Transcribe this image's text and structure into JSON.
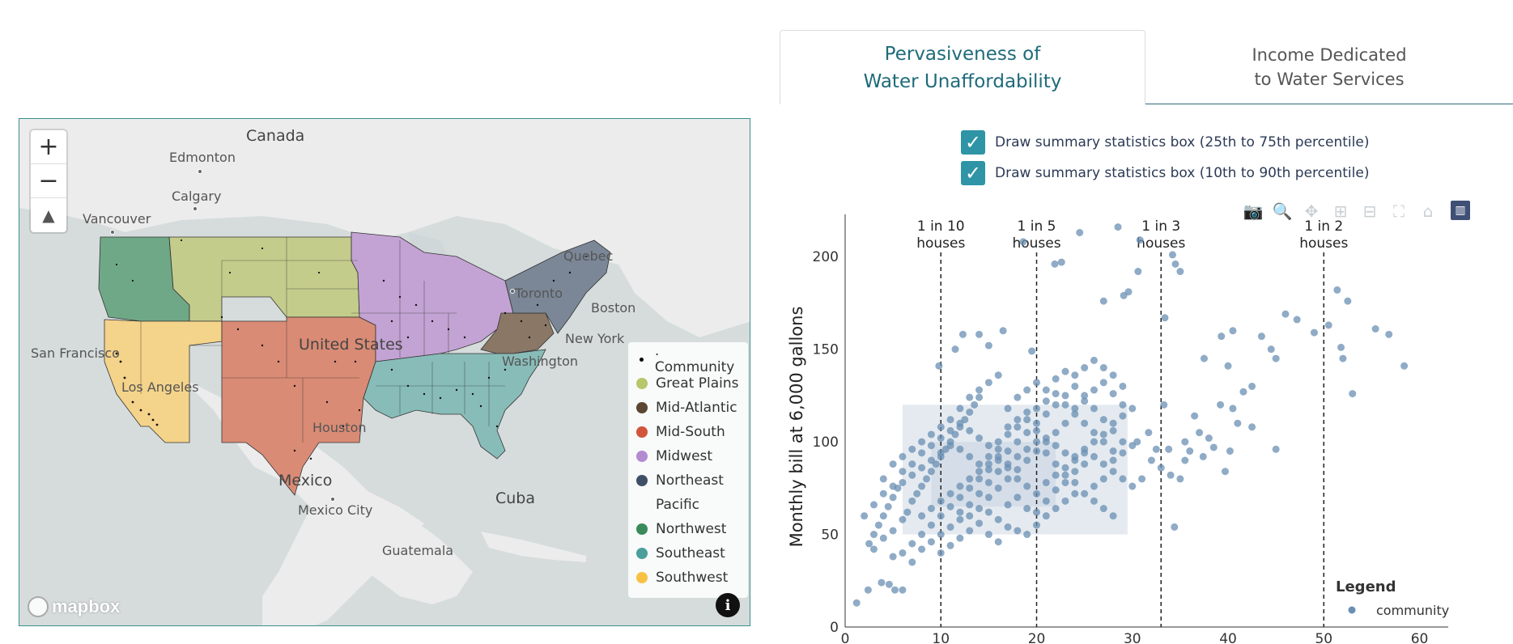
{
  "tabs": {
    "active_line1": "Pervasiveness of",
    "active_line2": "Water Unaffordability",
    "inactive_line1": "Income Dedicated",
    "inactive_line2": "to Water Services"
  },
  "checkboxes": [
    {
      "label": "Draw summary statistics box (25th to 75th percentile)",
      "checked": true
    },
    {
      "label": "Draw summary statistics box (10th to 90th percentile)",
      "checked": true
    }
  ],
  "map": {
    "controls": {
      "zoom_in": "+",
      "zoom_out": "−",
      "compass": "▲"
    },
    "labels": {
      "canada": "Canada",
      "edmonton": "Edmonton",
      "calgary": "Calgary",
      "vancouver": "Vancouver",
      "quebec": "Quebec",
      "toronto": "Toronto",
      "boston": "Boston",
      "new_york": "New York",
      "washington": "Washington",
      "united_states": "United States",
      "san_francisco": "San Francisco",
      "los_angeles": "Los Angeles",
      "houston": "Houston",
      "mexico": "Mexico",
      "mexico_city": "Mexico City",
      "cuba": "Cuba",
      "guatemala": "Guatemala"
    },
    "logo": "mapbox",
    "info": "i",
    "legend": [
      {
        "label": ". Community",
        "color": "#000000",
        "kind": "dot"
      },
      {
        "label": "Great Plains",
        "color": "#b7c76b"
      },
      {
        "label": "Mid-Atlantic",
        "color": "#5a4632"
      },
      {
        "label": "Mid-South",
        "color": "#d0553c"
      },
      {
        "label": "Midwest",
        "color": "#b38bcf"
      },
      {
        "label": "Northeast",
        "color": "#3f5066"
      },
      {
        "label": "Pacific",
        "color": "",
        "kind": "none"
      },
      {
        "label": "Northwest",
        "color": "#3a8a5a"
      },
      {
        "label": "Southeast",
        "color": "#4a9f9c"
      },
      {
        "label": "Southwest",
        "color": "#f7c244"
      }
    ]
  },
  "chart_data": {
    "type": "scatter",
    "ylabel": "Monthly bill at 6,000 gallons",
    "xlabel": "",
    "xlim": [
      0,
      63
    ],
    "ylim": [
      0,
      225
    ],
    "x_ticks": [
      0,
      10,
      20,
      30,
      40,
      50,
      60
    ],
    "y_ticks": [
      0,
      50,
      100,
      150,
      200
    ],
    "reference_lines": [
      {
        "x": 10,
        "label1": "1 in 10",
        "label2": "houses"
      },
      {
        "x": 20,
        "label1": "1 in 5",
        "label2": "houses"
      },
      {
        "x": 33,
        "label1": "1 in 3",
        "label2": "houses"
      },
      {
        "x": 50,
        "label1": "1 in 2",
        "label2": "houses"
      }
    ],
    "boxes": [
      {
        "name": "10th to 90th percentile",
        "x0": 6,
        "x1": 29.5,
        "y0": 50,
        "y1": 120
      },
      {
        "name": "25th to 75th percentile",
        "x0": 9,
        "x1": 22,
        "y0": 65,
        "y1": 100
      }
    ],
    "legend_title": "Legend",
    "series": [
      {
        "name": "community",
        "color": "#6a8fb3",
        "points": [
          [
            1.2,
            13
          ],
          [
            2.4,
            20
          ],
          [
            3.8,
            24
          ],
          [
            4.6,
            23
          ],
          [
            5.2,
            20
          ],
          [
            6,
            20
          ],
          [
            9.8,
            141
          ],
          [
            11.5,
            150
          ],
          [
            12.3,
            158
          ],
          [
            14,
            158
          ],
          [
            15,
            152
          ],
          [
            16.5,
            160
          ],
          [
            18.6,
            208
          ],
          [
            19.5,
            149
          ],
          [
            21.9,
            196
          ],
          [
            22.6,
            197
          ],
          [
            24.5,
            213
          ],
          [
            27,
            176
          ],
          [
            28.5,
            216
          ],
          [
            29.1,
            179
          ],
          [
            29.6,
            181
          ],
          [
            30.8,
            209
          ],
          [
            30.6,
            192
          ],
          [
            34.2,
            201
          ],
          [
            35,
            192
          ],
          [
            34.5,
            196
          ],
          [
            33.4,
            167
          ],
          [
            33.3,
            120
          ],
          [
            31,
            80
          ],
          [
            34.4,
            54
          ],
          [
            35,
            80
          ],
          [
            36,
            95
          ],
          [
            37.4,
            92
          ],
          [
            38.5,
            97
          ],
          [
            39.7,
            84
          ],
          [
            40.2,
            95
          ],
          [
            39.2,
            120
          ],
          [
            40.5,
            118
          ],
          [
            41.6,
            127
          ],
          [
            42.5,
            130
          ],
          [
            40,
            141
          ],
          [
            37.5,
            145
          ],
          [
            39.3,
            157
          ],
          [
            40.5,
            160
          ],
          [
            43.5,
            157
          ],
          [
            45,
            145
          ],
          [
            46,
            169
          ],
          [
            47.2,
            166
          ],
          [
            44.5,
            150
          ],
          [
            49,
            159
          ],
          [
            50.5,
            163
          ],
          [
            51.4,
            182
          ],
          [
            52.5,
            176
          ],
          [
            51.8,
            151
          ],
          [
            52,
            145
          ],
          [
            53,
            126
          ],
          [
            55.4,
            161
          ],
          [
            56.8,
            158
          ],
          [
            58.4,
            141
          ],
          [
            45,
            96
          ],
          [
            42.5,
            108
          ],
          [
            41,
            110
          ],
          [
            38,
            102
          ],
          [
            36.5,
            114
          ],
          [
            37,
            105
          ],
          [
            35.5,
            100
          ],
          [
            33.8,
            96
          ],
          [
            32.5,
            96
          ],
          [
            31.7,
            105
          ],
          [
            30.5,
            100
          ],
          [
            32,
            90
          ],
          [
            33,
            86
          ],
          [
            34,
            82
          ],
          [
            35.5,
            90
          ],
          [
            3,
            50
          ],
          [
            3.5,
            55
          ],
          [
            4,
            60
          ],
          [
            4.5,
            65
          ],
          [
            5,
            70
          ],
          [
            5.5,
            75
          ],
          [
            2.5,
            45
          ],
          [
            3,
            42
          ],
          [
            4,
            48
          ],
          [
            5,
            52
          ],
          [
            6,
            58
          ],
          [
            6.5,
            62
          ],
          [
            7,
            68
          ],
          [
            7.5,
            72
          ],
          [
            8,
            76
          ],
          [
            8.5,
            80
          ],
          [
            9,
            84
          ],
          [
            9.5,
            88
          ],
          [
            10,
            92
          ],
          [
            10.5,
            96
          ],
          [
            11,
            100
          ],
          [
            11.5,
            104
          ],
          [
            12,
            108
          ],
          [
            12.5,
            112
          ],
          [
            13,
            116
          ],
          [
            13.5,
            120
          ],
          [
            14,
            124
          ],
          [
            7,
            45
          ],
          [
            8,
            50
          ],
          [
            9,
            55
          ],
          [
            10,
            60
          ],
          [
            11,
            65
          ],
          [
            12,
            70
          ],
          [
            13,
            75
          ],
          [
            14,
            80
          ],
          [
            15,
            85
          ],
          [
            16,
            90
          ],
          [
            17,
            95
          ],
          [
            18,
            100
          ],
          [
            19,
            105
          ],
          [
            20,
            110
          ],
          [
            21,
            115
          ],
          [
            22,
            120
          ],
          [
            23,
            125
          ],
          [
            24,
            130
          ],
          [
            25,
            125
          ],
          [
            26,
            118
          ],
          [
            27,
            112
          ],
          [
            28,
            106
          ],
          [
            29,
            100
          ],
          [
            15,
            70
          ],
          [
            16,
            75
          ],
          [
            17,
            80
          ],
          [
            18,
            85
          ],
          [
            19,
            90
          ],
          [
            20,
            95
          ],
          [
            21,
            100
          ],
          [
            22,
            105
          ],
          [
            23,
            110
          ],
          [
            24,
            115
          ],
          [
            25,
            110
          ],
          [
            26,
            105
          ],
          [
            27,
            100
          ],
          [
            28,
            95
          ],
          [
            12,
            62
          ],
          [
            13,
            66
          ],
          [
            14,
            72
          ],
          [
            15,
            78
          ],
          [
            16,
            84
          ],
          [
            17,
            88
          ],
          [
            18,
            92
          ],
          [
            19,
            96
          ],
          [
            20,
            100
          ],
          [
            21,
            94
          ],
          [
            22,
            88
          ],
          [
            23,
            82
          ],
          [
            24,
            78
          ],
          [
            25,
            72
          ],
          [
            26,
            68
          ],
          [
            27,
            64
          ],
          [
            28,
            60
          ],
          [
            5,
            38
          ],
          [
            6,
            40
          ],
          [
            7,
            35
          ],
          [
            8,
            42
          ],
          [
            9,
            46
          ],
          [
            10,
            50
          ],
          [
            11,
            54
          ],
          [
            12,
            58
          ],
          [
            13,
            60
          ],
          [
            14,
            64
          ],
          [
            15,
            62
          ],
          [
            16,
            58
          ],
          [
            17,
            54
          ],
          [
            18,
            52
          ],
          [
            19,
            50
          ],
          [
            20,
            55
          ],
          [
            21,
            60
          ],
          [
            22,
            64
          ],
          [
            23,
            68
          ],
          [
            24,
            72
          ],
          [
            4,
            80
          ],
          [
            5,
            88
          ],
          [
            6,
            92
          ],
          [
            7,
            96
          ],
          [
            8,
            100
          ],
          [
            9,
            104
          ],
          [
            10,
            108
          ],
          [
            11,
            112
          ],
          [
            12,
            110
          ],
          [
            13,
            106
          ],
          [
            14,
            102
          ],
          [
            15,
            98
          ],
          [
            16,
            96
          ],
          [
            17,
            108
          ],
          [
            18,
            112
          ],
          [
            19,
            116
          ],
          [
            20,
            118
          ],
          [
            21,
            122
          ],
          [
            22,
            126
          ],
          [
            23,
            120
          ],
          [
            24,
            118
          ],
          [
            25,
            122
          ],
          [
            26,
            128
          ],
          [
            27,
            132
          ],
          [
            28,
            126
          ],
          [
            29,
            120
          ],
          [
            30,
            118
          ],
          [
            6,
            78
          ],
          [
            7,
            82
          ],
          [
            8,
            86
          ],
          [
            9,
            90
          ],
          [
            10,
            94
          ],
          [
            11,
            98
          ],
          [
            12,
            96
          ],
          [
            13,
            92
          ],
          [
            14,
            88
          ],
          [
            15,
            92
          ],
          [
            16,
            100
          ],
          [
            17,
            104
          ],
          [
            18,
            108
          ],
          [
            19,
            112
          ],
          [
            20,
            106
          ],
          [
            21,
            102
          ],
          [
            22,
            98
          ],
          [
            23,
            94
          ],
          [
            24,
            92
          ],
          [
            25,
            96
          ],
          [
            26,
            100
          ],
          [
            27,
            104
          ],
          [
            28,
            110
          ],
          [
            29,
            114
          ],
          [
            8,
            60
          ],
          [
            9,
            64
          ],
          [
            10,
            68
          ],
          [
            11,
            72
          ],
          [
            12,
            76
          ],
          [
            13,
            80
          ],
          [
            14,
            84
          ],
          [
            15,
            88
          ],
          [
            16,
            92
          ],
          [
            17,
            86
          ],
          [
            18,
            80
          ],
          [
            19,
            76
          ],
          [
            20,
            72
          ],
          [
            21,
            68
          ],
          [
            22,
            74
          ],
          [
            23,
            78
          ],
          [
            24,
            84
          ],
          [
            25,
            88
          ],
          [
            26,
            92
          ],
          [
            27,
            88
          ],
          [
            28,
            84
          ],
          [
            29,
            80
          ],
          [
            30,
            76
          ],
          [
            10,
            40
          ],
          [
            11,
            44
          ],
          [
            12,
            48
          ],
          [
            13,
            52
          ],
          [
            14,
            56
          ],
          [
            15,
            50
          ],
          [
            16,
            46
          ],
          [
            17,
            66
          ],
          [
            18,
            70
          ],
          [
            19,
            64
          ],
          [
            20,
            62
          ],
          [
            21,
            78
          ],
          [
            22,
            82
          ],
          [
            23,
            86
          ],
          [
            24,
            90
          ],
          [
            25,
            94
          ],
          [
            26,
            76
          ],
          [
            27,
            80
          ],
          [
            28,
            90
          ],
          [
            29,
            94
          ],
          [
            30,
            98
          ],
          [
            2,
            60
          ],
          [
            3,
            66
          ],
          [
            4,
            72
          ],
          [
            5,
            76
          ],
          [
            6,
            84
          ],
          [
            7,
            88
          ],
          [
            8,
            94
          ],
          [
            9,
            98
          ],
          [
            10,
            102
          ],
          [
            11,
            106
          ],
          [
            12,
            118
          ],
          [
            13,
            124
          ],
          [
            14,
            128
          ],
          [
            15,
            132
          ],
          [
            16,
            136
          ],
          [
            17,
            118
          ],
          [
            18,
            124
          ],
          [
            19,
            128
          ],
          [
            20,
            132
          ],
          [
            21,
            128
          ],
          [
            22,
            134
          ],
          [
            23,
            138
          ],
          [
            24,
            136
          ],
          [
            25,
            140
          ],
          [
            26,
            144
          ],
          [
            27,
            140
          ],
          [
            28,
            136
          ],
          [
            29,
            130
          ]
        ]
      }
    ]
  }
}
